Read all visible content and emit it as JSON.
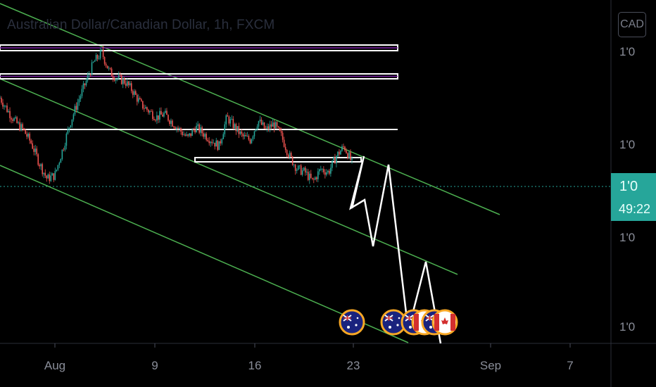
{
  "header": {
    "title": "Australian Dollar/Canadian Dollar, 1h, FXCM",
    "currency": "CAD"
  },
  "axis": {
    "y_ticks": [
      "1'0",
      "1'0",
      "1'0",
      "1'0"
    ],
    "x_ticks": [
      "Aug",
      "9",
      "16",
      "23",
      "Sep",
      "7"
    ]
  },
  "price_tag": {
    "price": "1'0",
    "countdown": "49:22"
  },
  "colors": {
    "background": "#000000",
    "up": "#26a69a",
    "down": "#ef5350",
    "channel": "#4caf50",
    "levels": "#ffffff",
    "level_fill": "#9c27b0"
  },
  "chart_data": {
    "type": "line",
    "title": "Australian Dollar/Canadian Dollar, 1h, FXCM",
    "xlabel": "",
    "ylabel": "CAD",
    "x_ticks": [
      "Aug",
      "9",
      "16",
      "23",
      "Sep",
      "7"
    ],
    "y_ticks": [
      "1'0",
      "1'0",
      "1'0",
      "1'0"
    ],
    "grid": false,
    "annotations": [
      "green descending trend channel (3 parallel lines)",
      "white horizontal resistance zones",
      "white projected zig-zag path",
      "Australian and Canadian flag event icons"
    ],
    "series": [
      {
        "values": [
          0.7,
          0.62,
          0.55,
          0.5,
          0.42,
          0.3,
          0.2,
          0.22,
          0.38,
          0.55,
          0.68,
          0.8,
          0.92,
          0.98,
          0.86,
          0.82,
          0.8,
          0.74,
          0.66,
          0.62,
          0.58,
          0.6,
          0.55,
          0.5,
          0.45,
          0.52,
          0.48,
          0.44,
          0.4,
          0.58,
          0.52,
          0.46,
          0.44,
          0.56,
          0.5,
          0.54,
          0.46,
          0.34,
          0.26,
          0.24,
          0.18,
          0.26,
          0.24,
          0.34,
          0.4,
          0.3
        ]
      }
    ]
  }
}
